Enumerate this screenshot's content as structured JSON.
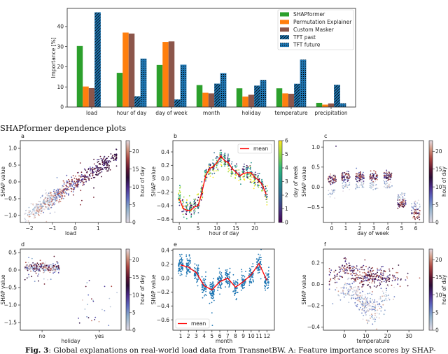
{
  "figure": {
    "section_title": "SHAPformer dependence plots",
    "caption_label": "Fig. 3",
    "caption_text": ": Global explanations on real-world load data from TransnetBW. A: Feature importance scores by SHAP-"
  },
  "colors": {
    "SHAPformer": "#2ca02c",
    "Permutation Explainer": "#ff7f0e",
    "Custom Masker": "#8c564b",
    "TFT": "#1f77b4",
    "mean": "#ff0000"
  },
  "chart_data": [
    {
      "id": "importance",
      "type": "bar",
      "ylabel": "Importance [%]",
      "ylim": [
        0,
        49
      ],
      "yticks": [
        0,
        10,
        20,
        30,
        40
      ],
      "grid": false,
      "legend": "top-right",
      "categories": [
        "load",
        "hour of day",
        "day of week",
        "month",
        "holiday",
        "temperature",
        "precipitation"
      ],
      "series": [
        {
          "name": "SHAPformer",
          "hatch": "none",
          "values": [
            30.3,
            17.0,
            20.9,
            10.9,
            9.3,
            9.3,
            2.1
          ]
        },
        {
          "name": "Permutation Explainer",
          "hatch": "none",
          "values": [
            10.2,
            37.0,
            32.3,
            7.1,
            5.2,
            6.8,
            1.2
          ]
        },
        {
          "name": "Custom Masker",
          "hatch": "none",
          "values": [
            9.4,
            36.5,
            32.6,
            6.8,
            6.1,
            6.6,
            1.8
          ]
        },
        {
          "name": "TFT past",
          "hatch": "diagonal",
          "values": [
            47.0,
            5.3,
            3.7,
            11.6,
            10.6,
            11.5,
            11.0
          ]
        },
        {
          "name": "TFT future",
          "hatch": "dots",
          "values": [
            null,
            24.0,
            21.0,
            16.8,
            13.4,
            23.5,
            1.8
          ]
        }
      ]
    },
    {
      "id": "a",
      "panel_label": "a",
      "type": "scatter",
      "xlabel": "load",
      "ylabel": "SHAP value",
      "xlim": [
        -2.4,
        2.0
      ],
      "ylim": [
        -1.21,
        1.23
      ],
      "xticks": [
        -2,
        -1,
        0,
        1
      ],
      "xticklabels": [
        "−2",
        "−1",
        "0",
        "1"
      ],
      "yticks": [
        -1.0,
        -0.5,
        0.0,
        0.5,
        1.0
      ],
      "yticklabels": [
        "−1.0",
        "−0.5",
        "0.0",
        "0.5",
        "1.0"
      ],
      "trend": "SHAP value rises roughly linearly with load, from about -1.0 at load -2 to about 0.6 at load 1.5",
      "colorbar": {
        "label": "hour of day",
        "range": [
          0,
          23
        ],
        "ticks": [
          0,
          5,
          10,
          15,
          20
        ],
        "colormap": "twilight"
      }
    },
    {
      "id": "b",
      "panel_label": "b",
      "type": "scatter",
      "xlabel": "hour of day",
      "ylabel": "SHAP value",
      "xlim": [
        -1.7,
        25.2
      ],
      "ylim": [
        -0.65,
        0.567
      ],
      "xticks": [
        0,
        5,
        10,
        15,
        20
      ],
      "xticklabels": [
        "0",
        "5",
        "10",
        "15",
        "20"
      ],
      "yticks": [
        -0.6,
        -0.4,
        -0.2,
        0.0,
        0.2,
        0.4
      ],
      "yticklabels": [
        "−0.6",
        "−0.4",
        "−0.2",
        "0.0",
        "0.2",
        "0.4"
      ],
      "legend": "top-right",
      "mean": {
        "name": "mean",
        "x": [
          0,
          1,
          2,
          3,
          4,
          5,
          6,
          7,
          8,
          9,
          10,
          11,
          12,
          13,
          14,
          15,
          16,
          17,
          18,
          19,
          20,
          21,
          22,
          23
        ],
        "y": [
          -0.3,
          -0.44,
          -0.47,
          -0.47,
          -0.42,
          -0.4,
          -0.2,
          0.05,
          0.15,
          0.18,
          0.24,
          0.34,
          0.27,
          0.24,
          0.15,
          0.1,
          0.04,
          0.08,
          0.09,
          0.09,
          0.02,
          -0.02,
          -0.09,
          -0.23
        ]
      },
      "colorbar": {
        "label": "day of week",
        "range": [
          0,
          6
        ],
        "ticks": [
          0,
          1,
          2,
          3,
          4,
          5,
          6
        ],
        "colormap": "viridis"
      }
    },
    {
      "id": "c",
      "panel_label": "c",
      "type": "scatter",
      "xlabel": "day of week",
      "ylabel": "SHAP value",
      "xlim": [
        -0.6,
        6.55
      ],
      "ylim": [
        -0.88,
        1.16
      ],
      "xticks": [
        0,
        1,
        2,
        3,
        4,
        5,
        6
      ],
      "xticklabels": [
        "0",
        "1",
        "2",
        "3",
        "4",
        "5",
        "6"
      ],
      "yticks": [
        -0.5,
        0.0,
        0.5,
        1.0
      ],
      "yticklabels": [
        "−0.5",
        "0.0",
        "0.5",
        "1.0"
      ],
      "clusters": [
        {
          "x": 0,
          "y_range": [
            -0.25,
            0.35
          ]
        },
        {
          "x": 1,
          "y_range": [
            0.0,
            0.45
          ]
        },
        {
          "x": 2,
          "y_range": [
            0.0,
            0.45
          ]
        },
        {
          "x": 3,
          "y_range": [
            0.0,
            0.4
          ]
        },
        {
          "x": 4,
          "y_range": [
            0.0,
            0.35
          ]
        },
        {
          "x": 5,
          "y_range": [
            -0.55,
            -0.1
          ]
        },
        {
          "x": 6,
          "y_range": [
            -0.8,
            -0.35
          ]
        }
      ],
      "colorbar": {
        "label": "hour of day",
        "range": [
          0,
          23
        ],
        "ticks": [
          0,
          5,
          10,
          15,
          20
        ],
        "colormap": "twilight"
      }
    },
    {
      "id": "d",
      "panel_label": "d",
      "type": "scatter",
      "xlabel": "holiday",
      "ylabel": "SHAP value",
      "xlim": [
        -0.38,
        1.38
      ],
      "ylim": [
        -1.72,
        0.6
      ],
      "xticks": [
        0,
        1
      ],
      "xticklabels": [
        "no",
        "yes"
      ],
      "yticks": [
        -1.5,
        -1.0,
        -0.5,
        0.0,
        0.5
      ],
      "yticklabels": [
        "−1.5",
        "−1.0",
        "−0.5",
        "0.0",
        "0.5"
      ],
      "clusters": [
        {
          "x": 0,
          "y_range": [
            -0.5,
            0.45
          ]
        },
        {
          "x": 1,
          "y_range": [
            -1.6,
            -0.25
          ]
        }
      ],
      "colorbar": {
        "label": "hour of day",
        "range": [
          0,
          23
        ],
        "ticks": [
          0,
          5,
          10,
          15,
          20
        ],
        "colormap": "twilight"
      }
    },
    {
      "id": "e",
      "panel_label": "e",
      "type": "scatter",
      "xlabel": "month",
      "ylabel": "SHAP value",
      "xlim": [
        0.02,
        12.96
      ],
      "ylim": [
        -0.75,
        0.42
      ],
      "xticks": [
        1,
        2,
        3,
        4,
        5,
        6,
        7,
        8,
        9,
        10,
        11,
        12
      ],
      "xticklabels": [
        "1",
        "2",
        "3",
        "4",
        "5",
        "6",
        "7",
        "8",
        "9",
        "10",
        "11",
        "12"
      ],
      "yticks": [
        -0.6,
        -0.4,
        -0.2,
        0.0,
        0.2,
        0.4
      ],
      "yticklabels": [
        "−0.6",
        "−0.4",
        "−0.2",
        "0.0",
        "0.2",
        "0.4"
      ],
      "legend": "bottom-left",
      "point_color": "#1f77b4",
      "mean": {
        "name": "mean",
        "x": [
          1,
          2,
          3,
          4,
          5,
          6,
          7,
          8,
          9,
          10,
          11,
          12
        ],
        "y": [
          0.19,
          0.16,
          0.08,
          -0.11,
          -0.17,
          -0.05,
          0.0,
          -0.13,
          -0.05,
          0.05,
          0.21,
          -0.03
        ]
      }
    },
    {
      "id": "f",
      "panel_label": "f",
      "type": "scatter",
      "xlabel": "temperature",
      "ylabel": "SHAP value",
      "xlim": [
        -9.8,
        36.8
      ],
      "ylim": [
        -0.43,
        0.33
      ],
      "xticks": [
        0,
        10,
        20,
        30
      ],
      "xticklabels": [
        "0",
        "10",
        "20",
        "30"
      ],
      "yticks": [
        -0.4,
        -0.2,
        0.0,
        0.2
      ],
      "yticklabels": [
        "−0.4",
        "−0.2",
        "0.0",
        "0.2"
      ],
      "colorbar": {
        "label": "hour of day",
        "range": [
          0,
          23
        ],
        "ticks": [
          0,
          5,
          10,
          15,
          20
        ],
        "colormap": "twilight"
      }
    }
  ]
}
